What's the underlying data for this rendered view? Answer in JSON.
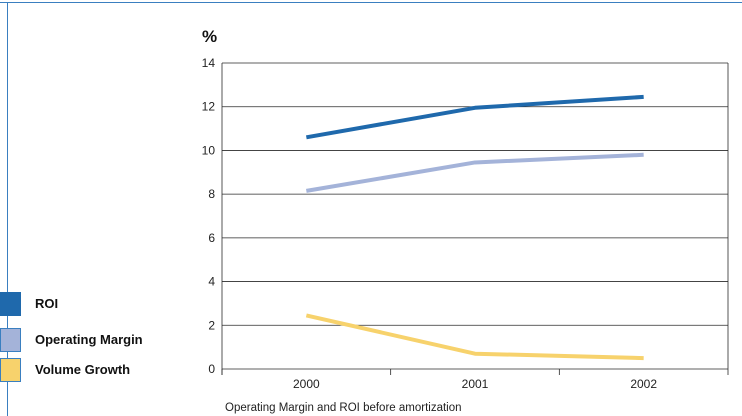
{
  "chart_data": {
    "type": "line",
    "unit_label": "%",
    "categories": [
      "2000",
      "2001",
      "2002"
    ],
    "ylim": [
      0,
      14
    ],
    "yticks": [
      0,
      2,
      4,
      6,
      8,
      10,
      12,
      14
    ],
    "grid": true,
    "legend_position": "left",
    "series": [
      {
        "name": "ROI",
        "color": "#1f69ac",
        "values": [
          10.6,
          11.95,
          12.45
        ]
      },
      {
        "name": "Operating Margin",
        "color": "#a4b3d9",
        "values": [
          8.15,
          9.45,
          9.8
        ]
      },
      {
        "name": "Volume Growth",
        "color": "#f7d26c",
        "values": [
          2.45,
          0.7,
          0.5
        ]
      }
    ],
    "caption": "Operating Margin and ROI before amortization"
  }
}
